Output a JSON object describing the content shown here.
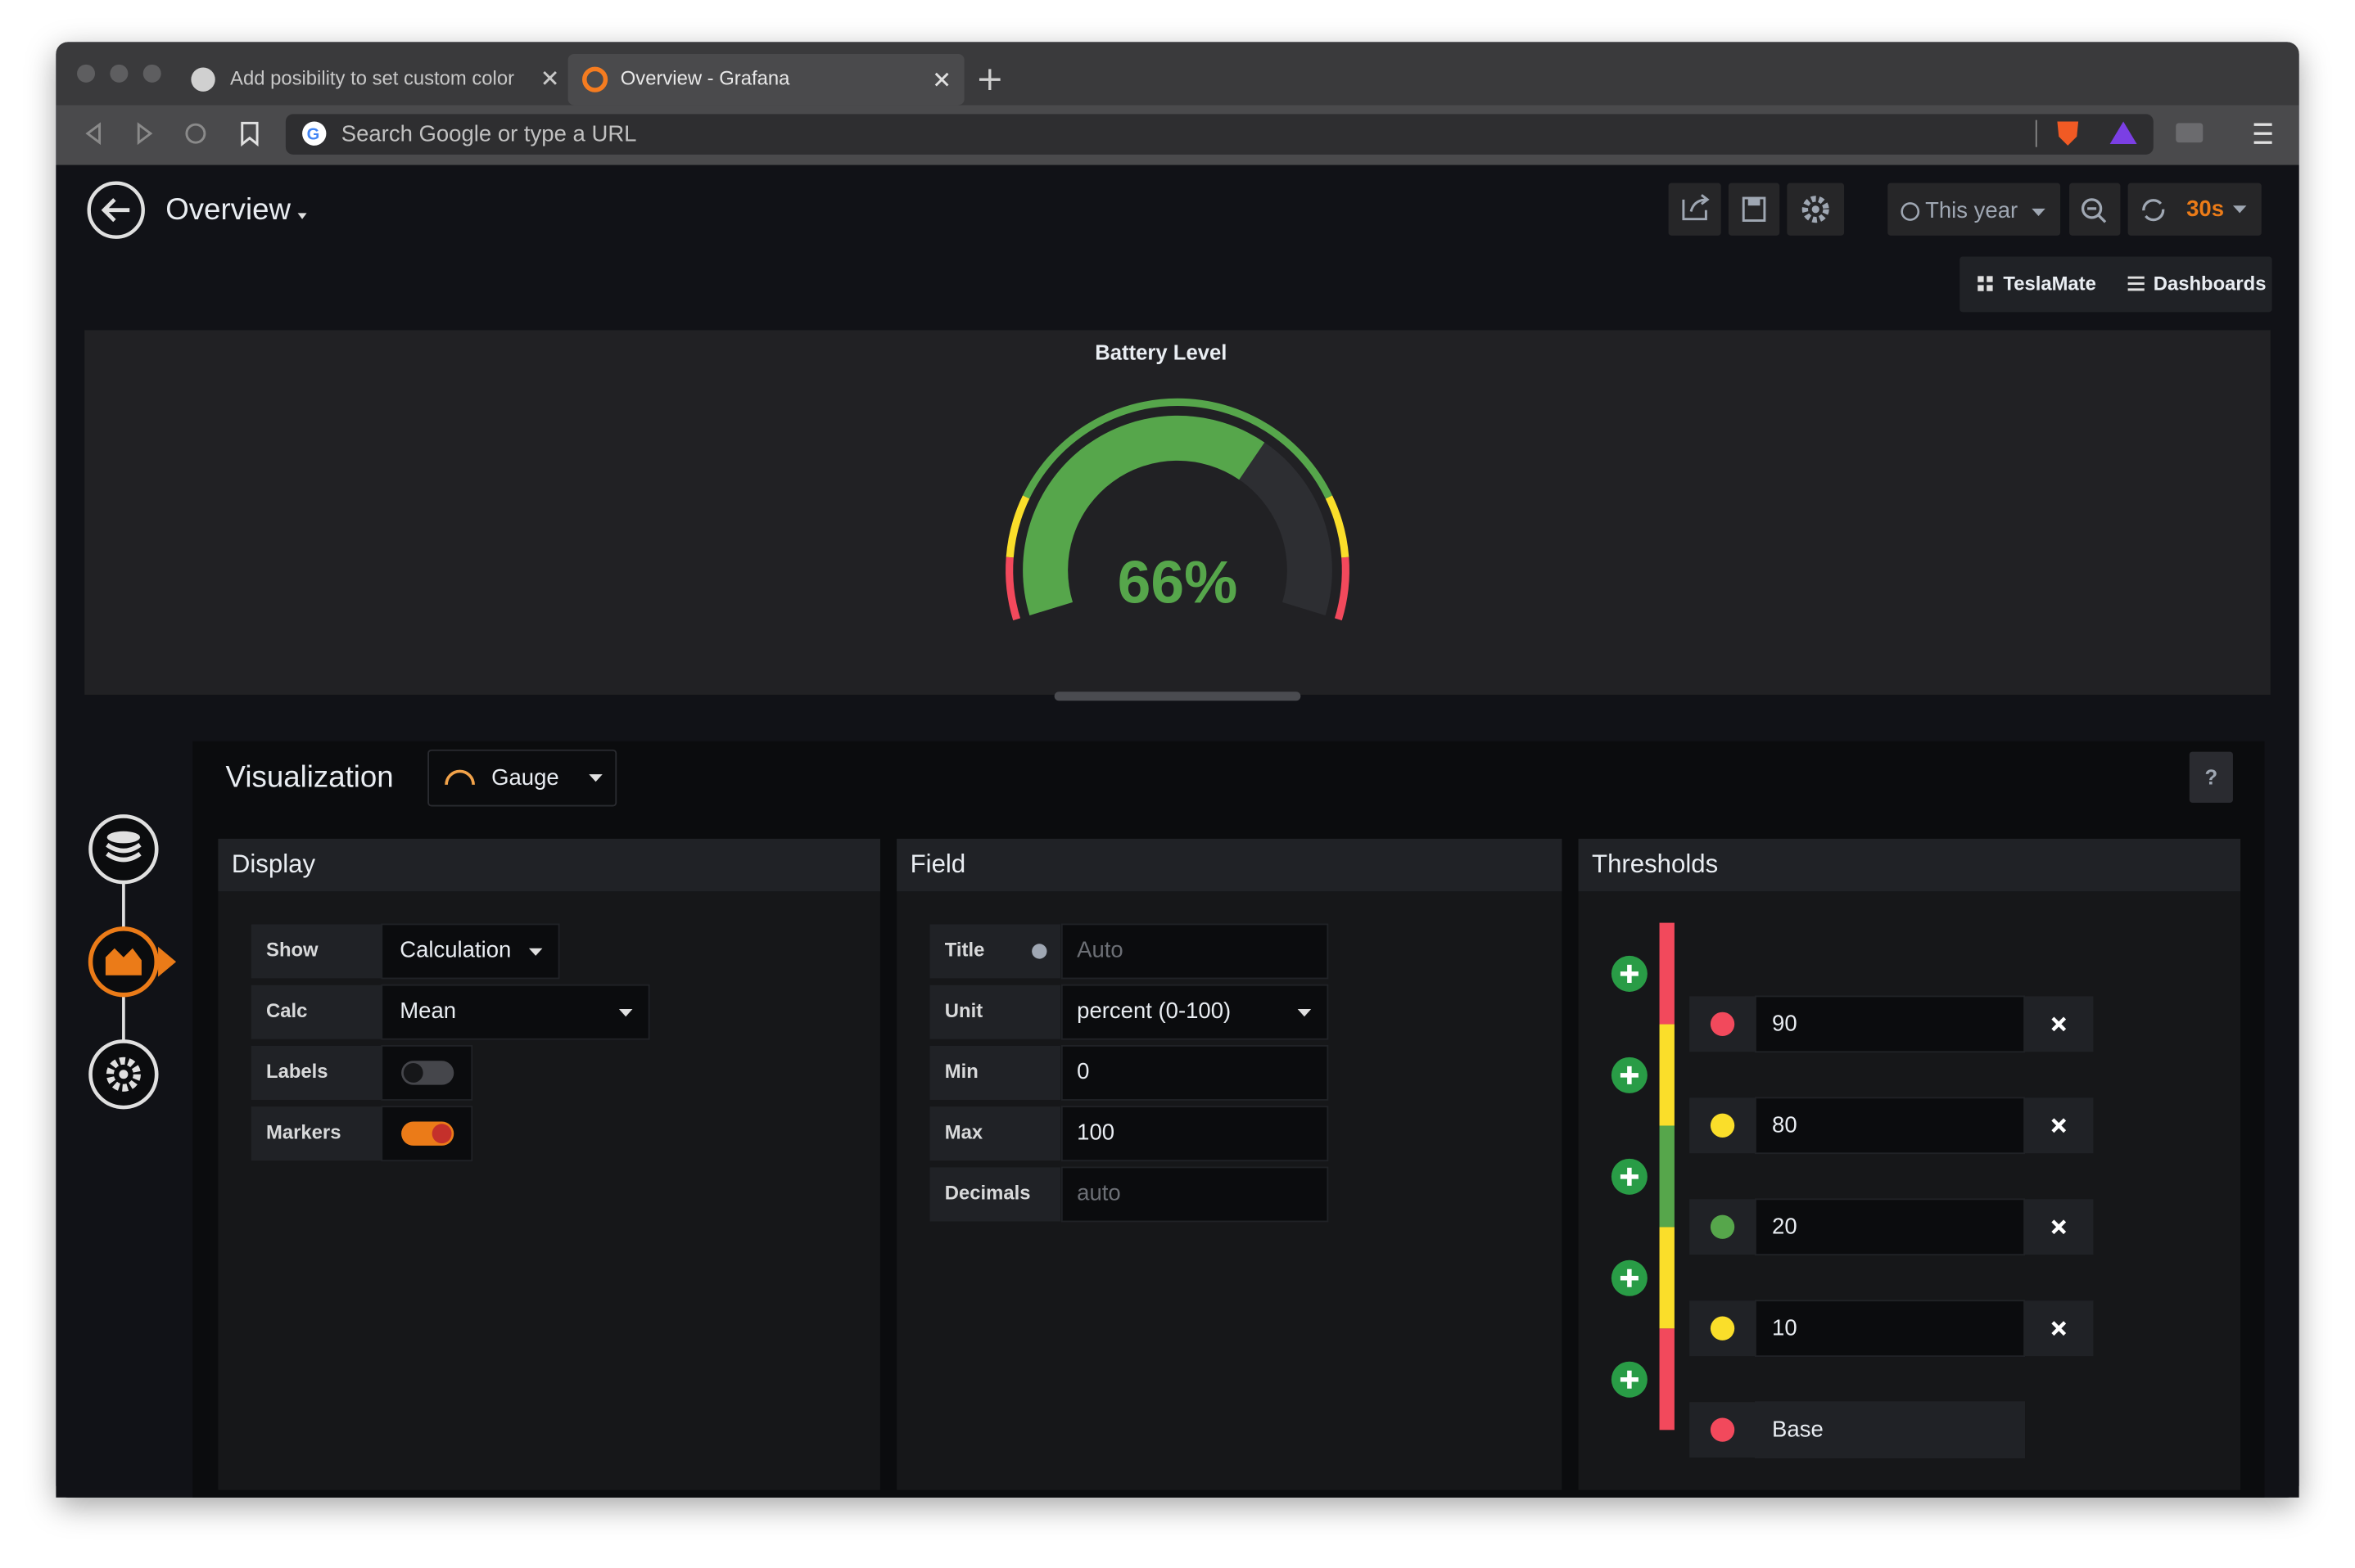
{
  "browser": {
    "tabs": [
      "Add posibility to set custom color",
      "Overview - Grafana"
    ],
    "address": "Search Google or type a URL"
  },
  "header": {
    "title": "Overview",
    "time_range": "This year",
    "refresh": "30s",
    "links": [
      "TeslaMate",
      "Dashboards"
    ]
  },
  "panel": {
    "title": "Battery Level",
    "value": 66,
    "value_label": "66%"
  },
  "editor": {
    "title": "Visualization",
    "visualization": "Gauge",
    "help": "?",
    "display": {
      "title": "Display",
      "rows": [
        {
          "label": "Show",
          "value": "Calculation"
        },
        {
          "label": "Calc",
          "value": "Mean"
        },
        {
          "label": "Labels",
          "toggle": false
        },
        {
          "label": "Markers",
          "toggle": true
        }
      ]
    },
    "field": {
      "title": "Field",
      "rows": [
        {
          "label": "Title",
          "placeholder": "Auto"
        },
        {
          "label": "Unit",
          "value": "percent (0-100)"
        },
        {
          "label": "Min",
          "value": "0"
        },
        {
          "label": "Max",
          "value": "100"
        },
        {
          "label": "Decimals",
          "placeholder": "auto"
        }
      ]
    },
    "thresholds": {
      "title": "Thresholds",
      "items": [
        {
          "value": "90",
          "color": "#f2495c"
        },
        {
          "value": "80",
          "color": "#fade2a"
        },
        {
          "value": "20",
          "color": "#56a64b"
        },
        {
          "value": "10",
          "color": "#fade2a"
        },
        {
          "value": "Base",
          "color": "#f2495c"
        }
      ]
    }
  }
}
